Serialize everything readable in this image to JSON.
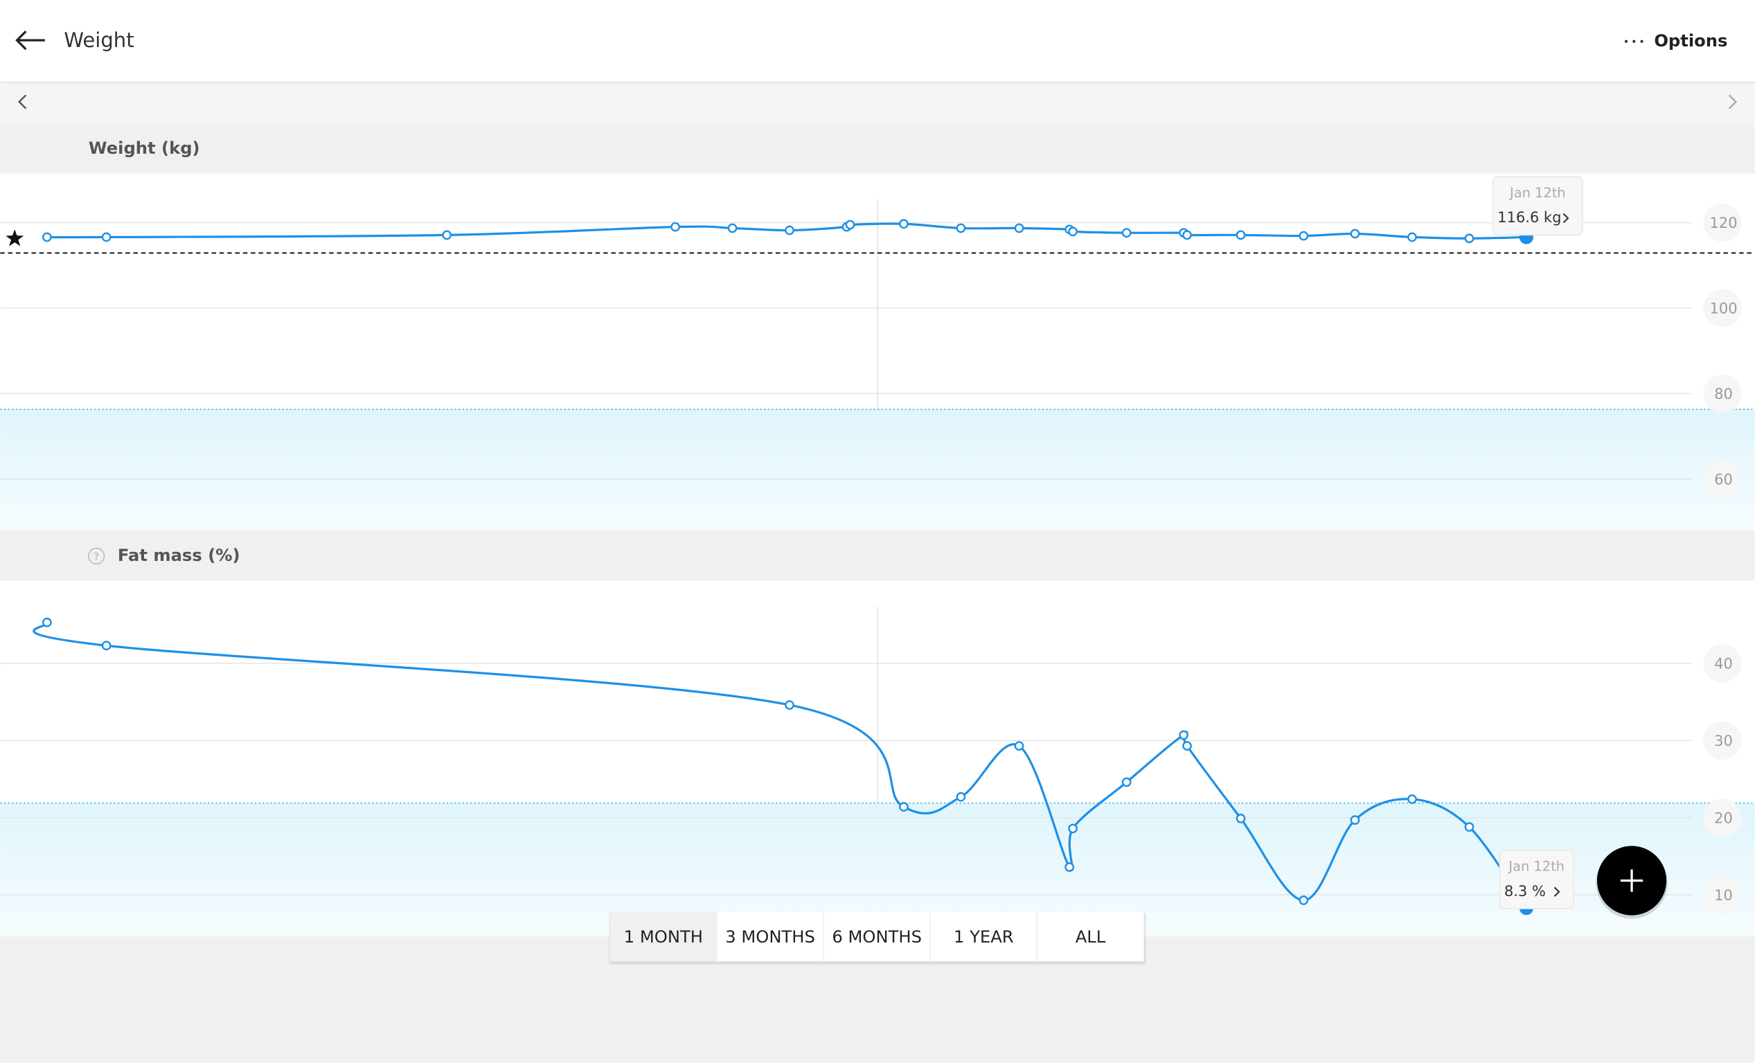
{
  "header": {
    "title": "Weight",
    "options": "Options"
  },
  "chart_data": [
    {
      "type": "line",
      "title": "Weight (kg)",
      "x": [
        1,
        2.04,
        8,
        12,
        13,
        14,
        15,
        15.06,
        16,
        17,
        18.02,
        18.9,
        18.96,
        19.9,
        20.9,
        20.96,
        21.9,
        23,
        23.9,
        24.9,
        25.9,
        26.9
      ],
      "series": [
        {
          "color": "#1e90e6",
          "values": [
            116.6,
            116.6,
            117.1,
            119,
            118.7,
            118.2,
            119,
            119.5,
            119.7,
            118.7,
            118.7,
            118.4,
            117.9,
            117.6,
            117.6,
            117.1,
            117.1,
            116.9,
            117.4,
            116.6,
            116.3,
            116.6
          ]
        }
      ],
      "xlim": [
        0.18,
        30.9
      ],
      "ylim": [
        48,
        131.5
      ],
      "yticks": [
        60,
        80,
        100,
        120
      ],
      "goal_line": 112.9,
      "range_max": 76.3,
      "tooltip": {
        "date": "Jan 12th",
        "label": "116.6 kg"
      }
    },
    {
      "type": "line",
      "title": "Fat mass (%)",
      "x": [
        1,
        2.04,
        14,
        16,
        17,
        18.02,
        18.9,
        18.96,
        19.9,
        20.9,
        20.96,
        21.9,
        23,
        23.9,
        24.9,
        25.9,
        26.9
      ],
      "series": [
        {
          "color": "#1e90e6",
          "values": [
            45.3,
            42.3,
            34.6,
            21.4,
            22.7,
            29.3,
            13.6,
            18.6,
            24.6,
            30.7,
            29.3,
            19.9,
            9.3,
            19.7,
            22.4,
            18.8,
            8.3
          ]
        }
      ],
      "xlim": [
        0.18,
        30.9
      ],
      "ylim": [
        4.6,
        50.7
      ],
      "yticks": [
        10,
        20,
        30,
        40
      ],
      "range_max": 21.9,
      "tooltip": {
        "date": "Jan 12th",
        "label": "8.3 %"
      }
    }
  ],
  "help_icon": "?",
  "periods": [
    "1 MONTH",
    "3 MONTHS",
    "6 MONTHS",
    "1 YEAR",
    "ALL"
  ],
  "selected_period": 0
}
